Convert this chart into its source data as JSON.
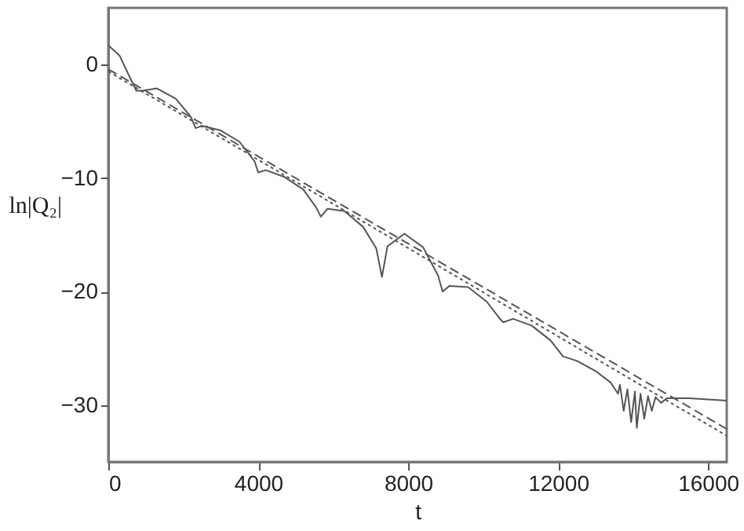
{
  "chart_data": {
    "type": "line",
    "xlabel": "t",
    "ylabel": "ln|Q₂|",
    "xlim": [
      0,
      16500
    ],
    "ylim": [
      -35,
      5
    ],
    "xticks": [
      0,
      4000,
      8000,
      12000,
      16000
    ],
    "yticks": [
      -30,
      -20,
      -10,
      0
    ],
    "grid": false,
    "marker": "none",
    "series": [
      {
        "color": "#555555",
        "line_style": "solid",
        "x": [
          0,
          300,
          600,
          750,
          900,
          1300,
          1800,
          2200,
          2330,
          2500,
          3000,
          3500,
          3900,
          4000,
          4200,
          4700,
          5200,
          5550,
          5670,
          5850,
          6300,
          6800,
          7150,
          7300,
          7450,
          7900,
          8400,
          8800,
          8920,
          9100,
          9600,
          10100,
          10450,
          10540,
          10800,
          11300,
          11800,
          12130,
          12500,
          13000,
          13400,
          13600,
          13650,
          13750,
          13850,
          13950,
          14050,
          14100,
          14200,
          14300,
          14400,
          14500,
          14600,
          14750,
          14900,
          15500,
          16000,
          16500
        ],
        "values": [
          1.7,
          0.8,
          -1.3,
          -2.3,
          -2.3,
          -2.1,
          -3.0,
          -4.6,
          -5.6,
          -5.4,
          -5.8,
          -6.8,
          -8.5,
          -9.5,
          -9.3,
          -9.9,
          -11,
          -12.6,
          -13.4,
          -12.7,
          -12.9,
          -14.3,
          -16.2,
          -18.7,
          -16,
          -14.9,
          -16.1,
          -18.6,
          -20,
          -19.5,
          -19.6,
          -20.9,
          -22.4,
          -22.7,
          -22.4,
          -23.0,
          -24.3,
          -25.7,
          -26.1,
          -27.0,
          -28.0,
          -29,
          -28.2,
          -30.5,
          -28.6,
          -31.5,
          -28.8,
          -32.0,
          -29.0,
          -31.2,
          -29.2,
          -30.5,
          -29.3,
          -29.8,
          -29.4,
          -29.4,
          -29.5,
          -29.6
        ]
      },
      {
        "color": "#555555",
        "line_style": "dashed",
        "x": [
          0,
          16500
        ],
        "values": [
          -0.4,
          -32.1
        ]
      },
      {
        "color": "#555555",
        "line_style": "dotted",
        "x": [
          0,
          16500
        ],
        "values": [
          -0.6,
          -32.7
        ]
      }
    ]
  }
}
